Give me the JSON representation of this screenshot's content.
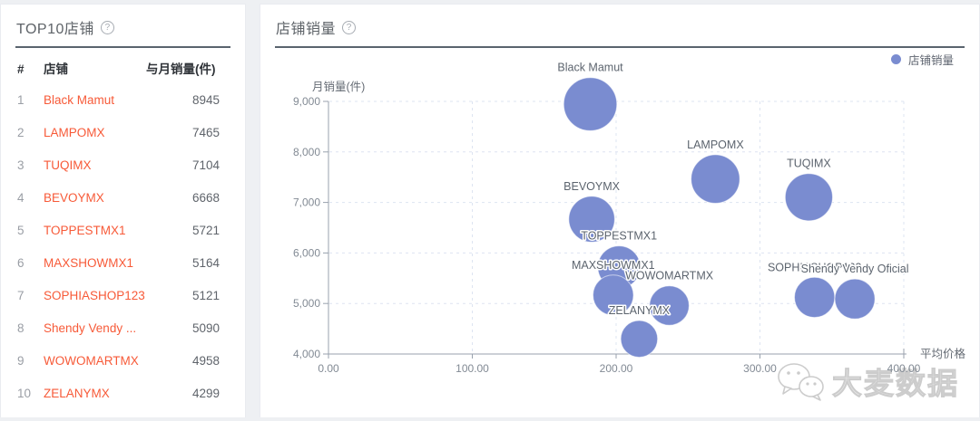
{
  "left_panel": {
    "title": "TOP10店铺",
    "help_icon": "?",
    "columns": {
      "rank": "#",
      "shop": "店铺",
      "sales": "与月销量(件)"
    },
    "rows": [
      {
        "rank": "1",
        "shop": "Black Mamut",
        "sales": "8945"
      },
      {
        "rank": "2",
        "shop": "LAMPOMX",
        "sales": "7465"
      },
      {
        "rank": "3",
        "shop": "TUQIMX",
        "sales": "7104"
      },
      {
        "rank": "4",
        "shop": "BEVOYMX",
        "sales": "6668"
      },
      {
        "rank": "5",
        "shop": "TOPPESTMX1",
        "sales": "5721"
      },
      {
        "rank": "6",
        "shop": "MAXSHOWMX1",
        "sales": "5164"
      },
      {
        "rank": "7",
        "shop": "SOPHIASHOP123",
        "sales": "5121"
      },
      {
        "rank": "8",
        "shop": "Shendy Vendy ...",
        "sales": "5090"
      },
      {
        "rank": "9",
        "shop": "WOWOMARTMX",
        "sales": "4958"
      },
      {
        "rank": "10",
        "shop": "ZELANYMX",
        "sales": "4299"
      }
    ]
  },
  "right_panel": {
    "title": "店铺销量",
    "help_icon": "?",
    "legend": {
      "label": "店铺销量",
      "color": "#7a8cd0"
    }
  },
  "chart_data": {
    "type": "scatter",
    "title": "店铺销量",
    "xlabel": "平均价格",
    "ylabel": "月销量(件)",
    "xlim": [
      0,
      400
    ],
    "ylim": [
      4000,
      9000
    ],
    "grid": "dashed",
    "legend_position": "top-right",
    "bubble_color": "#7a8cd0",
    "x_ticks": [
      {
        "value": 0,
        "label": "0.00"
      },
      {
        "value": 100,
        "label": "100.00"
      },
      {
        "value": 200,
        "label": "200.00"
      },
      {
        "value": 300,
        "label": "300.00"
      },
      {
        "value": 400,
        "label": "400.00"
      }
    ],
    "y_ticks": [
      {
        "value": 4000,
        "label": "4,000"
      },
      {
        "value": 5000,
        "label": "5,000"
      },
      {
        "value": 6000,
        "label": "6,000"
      },
      {
        "value": 7000,
        "label": "7,000"
      },
      {
        "value": 8000,
        "label": "8,000"
      },
      {
        "value": 9000,
        "label": "9,000"
      }
    ],
    "points": [
      {
        "name": "Black Mamut",
        "price": 182,
        "sales": 8945
      },
      {
        "name": "LAMPOMX",
        "price": 269,
        "sales": 7465
      },
      {
        "name": "TUQIMX",
        "price": 334,
        "sales": 7104
      },
      {
        "name": "BEVOYMX",
        "price": 183,
        "sales": 6668
      },
      {
        "name": "TOPPESTMX1",
        "price": 202,
        "sales": 5721
      },
      {
        "name": "MAXSHOWMX1",
        "price": 198,
        "sales": 5164
      },
      {
        "name": "SOPHIASHOP123",
        "price": 338,
        "sales": 5121
      },
      {
        "name": "Shendy Vendy Oficial",
        "price": 366,
        "sales": 5090
      },
      {
        "name": "WOWOMARTMX",
        "price": 237,
        "sales": 4958
      },
      {
        "name": "ZELANYMX",
        "price": 216,
        "sales": 4299
      }
    ]
  },
  "watermark": {
    "text": "大麦数据",
    "icon": "wechat-icon"
  }
}
